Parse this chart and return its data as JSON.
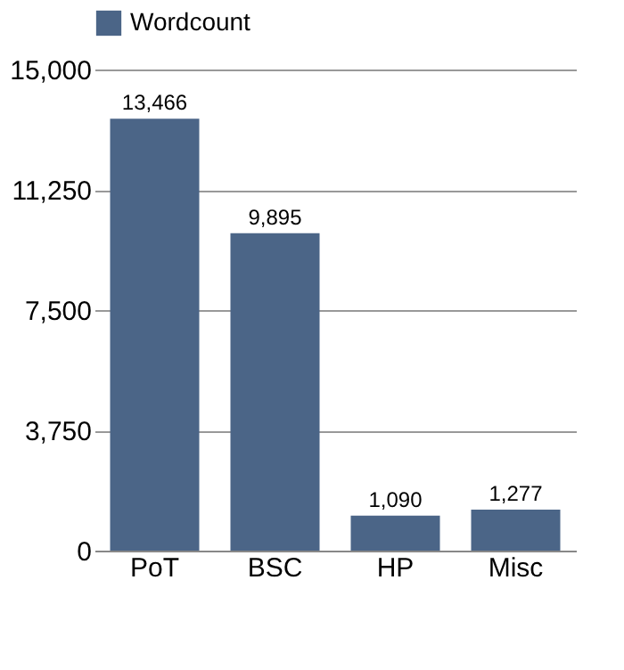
{
  "chart_data": {
    "type": "bar",
    "categories": [
      "PoT",
      "BSC",
      "HP",
      "Misc"
    ],
    "series": [
      {
        "name": "Wordcount",
        "color": "#4b6587",
        "values": [
          13466,
          9895,
          1090,
          1277
        ],
        "value_labels": [
          "13,466",
          "9,895",
          "1,090",
          "1,277"
        ]
      }
    ],
    "ylim": [
      0,
      15000
    ],
    "yticks": [
      {
        "value": 0,
        "label": "0"
      },
      {
        "value": 3750,
        "label": "3,750"
      },
      {
        "value": 7500,
        "label": "7,500"
      },
      {
        "value": 11250,
        "label": "11,250"
      },
      {
        "value": 15000,
        "label": "15,000"
      }
    ],
    "grid": "y",
    "legend": "top"
  }
}
